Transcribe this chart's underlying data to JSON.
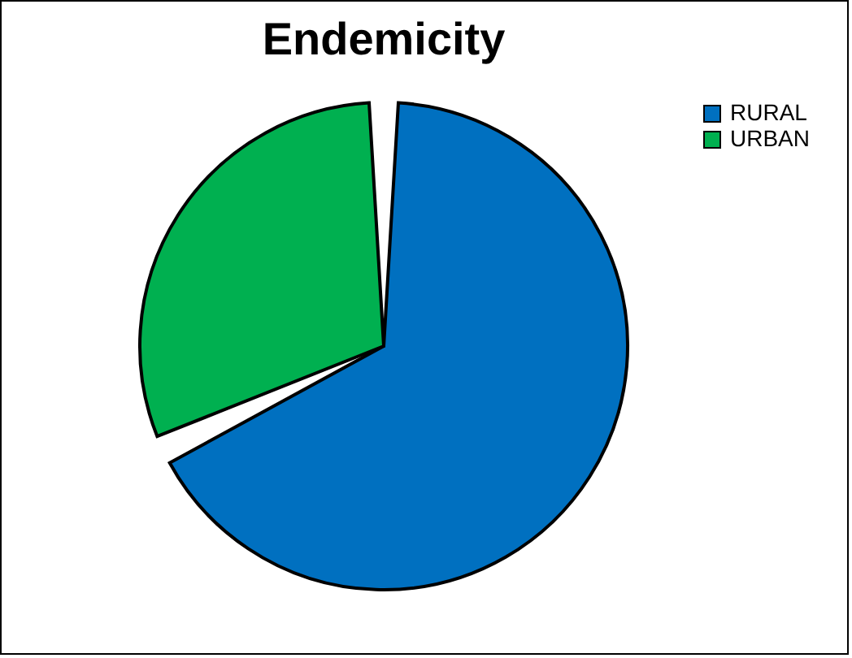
{
  "chart_data": {
    "type": "pie",
    "title": "Endemicity",
    "categories": [
      "RURAL",
      "URBAN"
    ],
    "values": [
      68,
      32
    ],
    "colors": [
      "#0070c0",
      "#00b050"
    ],
    "legend": "right"
  }
}
